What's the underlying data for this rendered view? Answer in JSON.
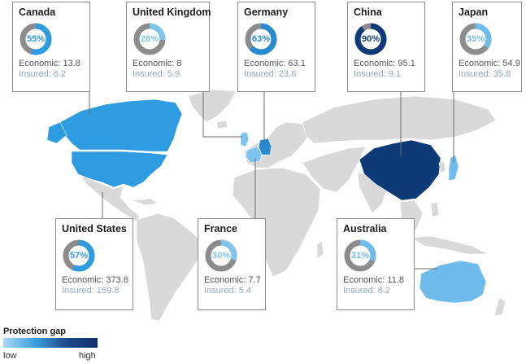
{
  "legend": {
    "title": "Protection gap",
    "low": "low",
    "high": "high"
  },
  "colors": {
    "ring_track": "#8c8c8c",
    "gap_light": "#7fc4ee",
    "gap_mid": "#2f9be0",
    "gap_dark": "#0e3b78"
  },
  "countries": [
    {
      "key": "canada",
      "name": "Canada",
      "percent": 55,
      "pct_label": "55%",
      "economic": "Economic: 13.8",
      "insured": "Insured: 6.2",
      "shade": "#2f9be0"
    },
    {
      "key": "united-kingdom",
      "name": "United Kingdom",
      "percent": 26,
      "pct_label": "26%",
      "economic": "Economic: 8",
      "insured": "Insured: 5.9",
      "shade": "#7fc4ee"
    },
    {
      "key": "germany",
      "name": "Germany",
      "percent": 63,
      "pct_label": "63%",
      "economic": "Economic: 63.1",
      "insured": "Insured: 23.6",
      "shade": "#2a8ad0"
    },
    {
      "key": "china",
      "name": "China",
      "percent": 90,
      "pct_label": "90%",
      "economic": "Economic: 95.1",
      "insured": "Insured: 9.1",
      "shade": "#0e3b78"
    },
    {
      "key": "japan",
      "name": "Japan",
      "percent": 35,
      "pct_label": "35%",
      "economic": "Economic: 54.9",
      "insured": "Insured: 35.8",
      "shade": "#6fbcec"
    },
    {
      "key": "united-states",
      "name": "United States",
      "percent": 57,
      "pct_label": "57%",
      "economic": "Economic: 373.6",
      "insured": "Insured: 159.8",
      "shade": "#2f9be0"
    },
    {
      "key": "france",
      "name": "France",
      "percent": 30,
      "pct_label": "30%",
      "economic": "Economic: 7.7",
      "insured": "Insured: 5.4",
      "shade": "#7fc4ee"
    },
    {
      "key": "australia",
      "name": "Australia",
      "percent": 31,
      "pct_label": "31%",
      "economic": "Economic: 11.8",
      "insured": "Insured: 8.2",
      "shade": "#6fbcec"
    }
  ]
}
